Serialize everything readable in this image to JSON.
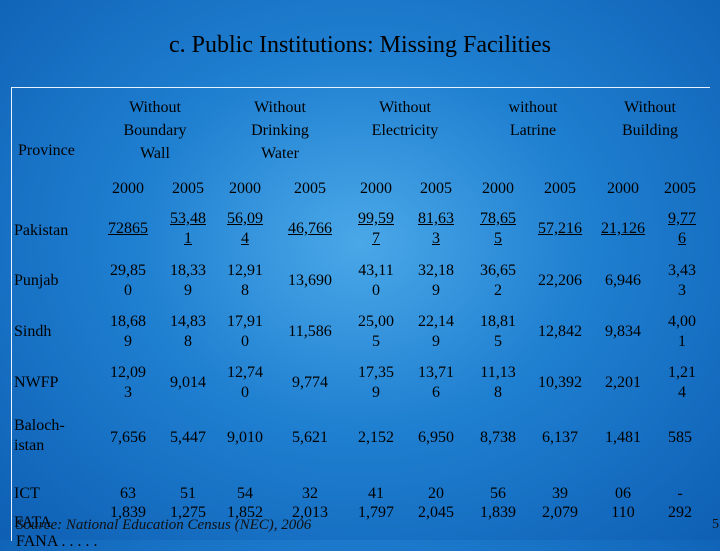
{
  "title": "c. Public Institutions: Missing Facilities",
  "table": {
    "province_header": "Province",
    "groups": [
      {
        "label": "Without\nBoundary\nWall"
      },
      {
        "label": "Without\nDrinking\nWater"
      },
      {
        "label": "Without\nElectricity"
      },
      {
        "label": "without\nLatrine"
      },
      {
        "label": "Without\nBuilding"
      }
    ],
    "years": [
      "2000",
      "2005",
      "2000",
      "2005",
      "2000",
      "2005",
      "2000",
      "2005",
      "2000",
      "2005"
    ],
    "rows": [
      {
        "province": "Pakistan",
        "values": [
          "72865",
          "53,48\n1",
          "56,09\n4",
          "46,766",
          "99,59\n7",
          "81,63\n3",
          "78,65\n5",
          "57,216",
          "21,126",
          "9,77\n6"
        ]
      },
      {
        "province": "Punjab",
        "values": [
          "29,85\n0",
          "18,33\n9",
          "12,91\n8",
          "13,690",
          "43,11\n0",
          "32,18\n9",
          "36,65\n2",
          "22,206",
          "6,946",
          "3,43\n3"
        ]
      },
      {
        "province": "Sindh",
        "values": [
          "18,68\n9",
          "14,83\n8",
          "17,91\n0",
          "11,586",
          "25,00\n5",
          "22,14\n9",
          "18,81\n5",
          "12,842",
          "9,834",
          "4,00\n1"
        ]
      },
      {
        "province": "NWFP",
        "values": [
          "12,09\n3",
          "9,014",
          "12,74\n0",
          "9,774",
          "17,35\n9",
          "13,71\n6",
          "11,13\n8",
          "10,392",
          "2,201",
          "1,21\n4"
        ]
      },
      {
        "province": "Baloch-\nistan",
        "values": [
          "7,656",
          "5,447",
          "9,010",
          "5,621",
          "2,152",
          "6,950",
          "8,738",
          "6,137",
          "1,481",
          "585"
        ]
      },
      {
        "province": "ICT",
        "values": [
          "63",
          "51",
          "54",
          "32",
          "41",
          "20",
          "56",
          "39",
          "06",
          "-"
        ]
      },
      {
        "province": "FATA",
        "values": [
          "1,839",
          "1,275",
          "1,852",
          "2,013",
          "1,797",
          "2,045",
          "1,839",
          "2,079",
          "110",
          "292"
        ]
      }
    ]
  },
  "source": "Source:  National Education Census (NEC), 2006",
  "partial_row": "FANA  .  .  .  .  .",
  "page_number": "5"
}
